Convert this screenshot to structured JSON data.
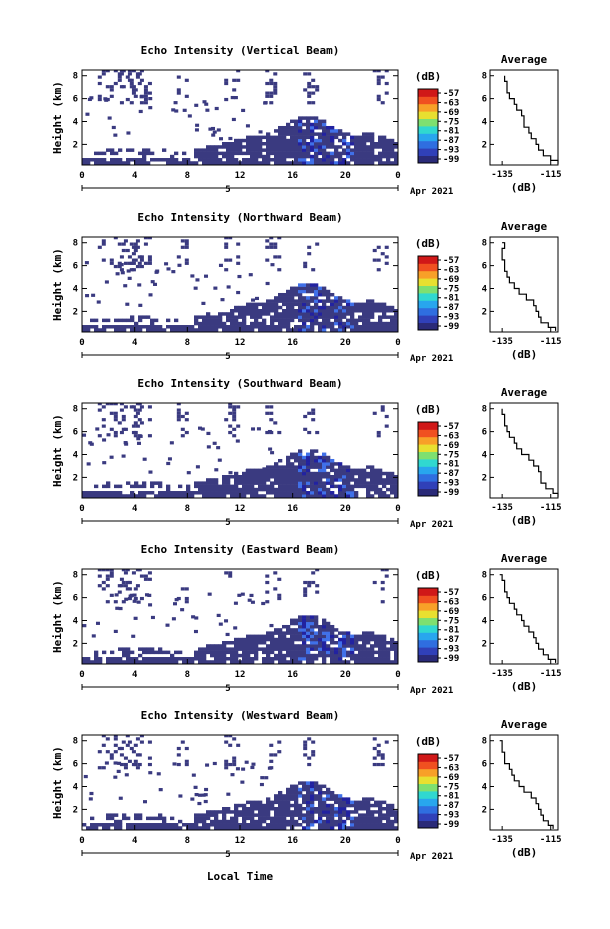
{
  "figure": {
    "x_tick_labels": [
      "0",
      "4",
      "8",
      "12",
      "16",
      "20",
      "0"
    ],
    "date_day": "5",
    "date_label": "Apr 2021",
    "xlabel": "Local Time",
    "colorbar_unit": "(dB)",
    "colorbar_ticks": [
      "-57",
      "-63",
      "-69",
      "-75",
      "-81",
      "-87",
      "-93",
      "-99"
    ],
    "colorbar_colors": [
      "#2a2a78",
      "#3040b8",
      "#2f6ee0",
      "#28a6ee",
      "#30d8d0",
      "#7ee070",
      "#e8e030",
      "#f8a028",
      "#f05020",
      "#d01818"
    ],
    "cloud_color": "#3a3a80",
    "cloud_dark_color": "#2222a0",
    "cloud_bright_color": "#4070e8"
  },
  "chart_data": [
    {
      "type": "heatmap",
      "title": "Echo Intensity (Vertical Beam)",
      "ylabel": "Height (km)",
      "y_ticks": [
        "2",
        "4",
        "6",
        "8"
      ],
      "y_range_km": [
        0.2,
        8.5
      ],
      "x_range_hours": [
        0,
        24
      ],
      "avg_profile": {
        "title": "Average",
        "x_ticks": [
          "-135",
          "-115"
        ],
        "xlabel": "(dB)",
        "x_range_db": [
          -140,
          -112
        ],
        "height_km": [
          0.3,
          0.6,
          1.0,
          1.5,
          2.0,
          2.5,
          3.0,
          3.5,
          4.0,
          4.5,
          5.0,
          5.5,
          6.0,
          6.5,
          7.0,
          7.5,
          8.0
        ],
        "value_db": [
          -112,
          -115,
          -118,
          -120,
          -121,
          -123,
          -124,
          -126,
          -126,
          -127,
          -129,
          -130,
          -132,
          -133,
          -133,
          -134,
          -134
        ]
      }
    },
    {
      "type": "heatmap",
      "title": "Echo Intensity (Northward Beam)",
      "ylabel": "Height (km)",
      "y_ticks": [
        "2",
        "4",
        "6",
        "8"
      ],
      "y_range_km": [
        0.2,
        8.5
      ],
      "x_range_hours": [
        0,
        24
      ],
      "avg_profile": {
        "title": "Average",
        "x_ticks": [
          "-135",
          "-115"
        ],
        "xlabel": "(dB)",
        "x_range_db": [
          -140,
          -112
        ],
        "height_km": [
          0.3,
          0.6,
          1.0,
          1.5,
          2.0,
          2.5,
          3.0,
          3.5,
          4.0,
          4.5,
          5.0,
          5.5,
          6.0,
          6.5,
          7.0,
          7.5,
          8.0
        ],
        "value_db": [
          -113,
          -116,
          -119,
          -120,
          -121,
          -122,
          -125,
          -128,
          -130,
          -132,
          -133,
          -134,
          -134,
          -135,
          -135,
          -134,
          -135
        ]
      }
    },
    {
      "type": "heatmap",
      "title": "Echo Intensity (Southward Beam)",
      "ylabel": "Height (km)",
      "y_ticks": [
        "2",
        "4",
        "6",
        "8"
      ],
      "y_range_km": [
        0.2,
        8.5
      ],
      "x_range_hours": [
        0,
        24
      ],
      "avg_profile": {
        "title": "Average",
        "x_ticks": [
          "-135",
          "-115"
        ],
        "xlabel": "(dB)",
        "x_range_db": [
          -140,
          -112
        ],
        "height_km": [
          0.3,
          0.6,
          1.0,
          1.5,
          2.0,
          2.5,
          3.0,
          3.5,
          4.0,
          4.5,
          5.0,
          5.5,
          6.0,
          6.5,
          7.0,
          7.5,
          8.0
        ],
        "value_db": [
          -112,
          -114,
          -117,
          -119,
          -119,
          -120,
          -122,
          -124,
          -127,
          -129,
          -130,
          -132,
          -133,
          -134,
          -134,
          -135,
          -135
        ]
      }
    },
    {
      "type": "heatmap",
      "title": "Echo Intensity (Eastward Beam)",
      "ylabel": "Height (km)",
      "y_ticks": [
        "2",
        "4",
        "6",
        "8"
      ],
      "y_range_km": [
        0.2,
        8.5
      ],
      "x_range_hours": [
        0,
        24
      ],
      "avg_profile": {
        "title": "Average",
        "x_ticks": [
          "-135",
          "-115"
        ],
        "xlabel": "(dB)",
        "x_range_db": [
          -140,
          -112
        ],
        "height_km": [
          0.3,
          0.6,
          1.0,
          1.5,
          2.0,
          2.5,
          3.0,
          3.5,
          4.0,
          4.5,
          5.0,
          5.5,
          6.0,
          6.5,
          7.0,
          7.5,
          8.0
        ],
        "value_db": [
          -113,
          -116,
          -118,
          -120,
          -121,
          -122,
          -124,
          -126,
          -127,
          -129,
          -130,
          -132,
          -133,
          -134,
          -134,
          -135,
          -136
        ]
      }
    },
    {
      "type": "heatmap",
      "title": "Echo Intensity (Westward Beam)",
      "ylabel": "Height (km)",
      "y_ticks": [
        "2",
        "4",
        "6",
        "8"
      ],
      "y_range_km": [
        0.2,
        8.5
      ],
      "x_range_hours": [
        0,
        24
      ],
      "avg_profile": {
        "title": "Average",
        "x_ticks": [
          "-135",
          "-115"
        ],
        "xlabel": "(dB)",
        "x_range_db": [
          -140,
          -112
        ],
        "height_km": [
          0.3,
          0.6,
          1.0,
          1.5,
          2.0,
          2.5,
          3.0,
          3.5,
          4.0,
          4.5,
          5.0,
          5.5,
          6.0,
          6.5,
          7.0,
          7.5,
          8.0
        ],
        "value_db": [
          -114,
          -116,
          -118,
          -119,
          -120,
          -121,
          -123,
          -126,
          -128,
          -130,
          -131,
          -132,
          -134,
          -134,
          -135,
          -135,
          -136
        ]
      }
    }
  ]
}
